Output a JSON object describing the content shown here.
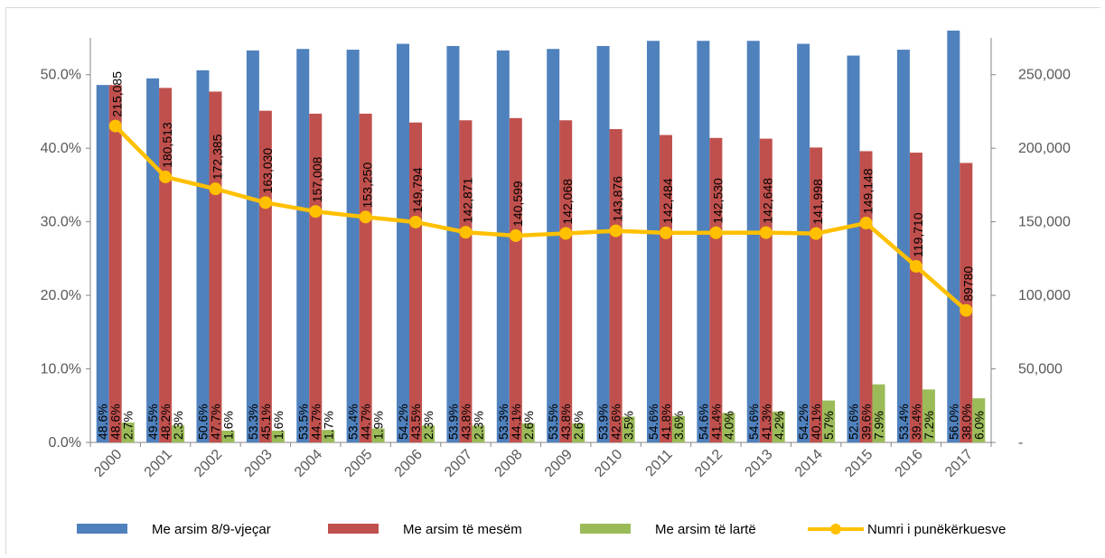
{
  "chart_data": {
    "type": "bar",
    "categories": [
      "2000",
      "2001",
      "2002",
      "2003",
      "2004",
      "2005",
      "2006",
      "2007",
      "2008",
      "2009",
      "2010",
      "2011",
      "2012",
      "2013",
      "2014",
      "2015",
      "2016",
      "2017"
    ],
    "series": [
      {
        "name": "Me arsim 8/9-vjeçar",
        "axis": "left",
        "color": "#4f81bd",
        "values": [
          48.6,
          49.5,
          50.6,
          53.3,
          53.5,
          53.4,
          54.2,
          53.9,
          53.3,
          53.5,
          53.9,
          54.6,
          54.6,
          54.6,
          54.2,
          52.6,
          53.4,
          56.0
        ],
        "labels": [
          "48.6%",
          "49.5%",
          "50.6%",
          "53.3%",
          "53.5%",
          "53.4%",
          "54.2%",
          "53.9%",
          "53.3%",
          "53.5%",
          "53.9%",
          "54.6%",
          "54.6%",
          "54.6%",
          "54.2%",
          "52.6%",
          "53.4%",
          "56.0%"
        ]
      },
      {
        "name": "Me arsim të mesëm",
        "axis": "left",
        "color": "#c0504d",
        "values": [
          48.6,
          48.2,
          47.7,
          45.1,
          44.7,
          44.7,
          43.5,
          43.8,
          44.1,
          43.8,
          42.6,
          41.8,
          41.4,
          41.3,
          40.1,
          39.6,
          39.4,
          38.0
        ],
        "labels": [
          "48.6%",
          "48.2%",
          "47.7%",
          "45.1%",
          "44.7%",
          "44.7%",
          "43.5%",
          "43.8%",
          "44.1%",
          "43.8%",
          "42.6%",
          "41.8%",
          "41.4%",
          "41.3%",
          "40.1%",
          "39.6%",
          "39.4%",
          "38.0%"
        ]
      },
      {
        "name": "Me arsim të lartë",
        "axis": "left",
        "color": "#9bbb59",
        "values": [
          2.7,
          2.3,
          1.6,
          1.6,
          1.7,
          1.9,
          2.3,
          2.3,
          2.6,
          2.6,
          3.5,
          3.6,
          4.0,
          4.2,
          5.7,
          7.9,
          7.2,
          6.0
        ],
        "labels": [
          "2.7%",
          "2.3%",
          "1.6%",
          "1.6%",
          "1.7%",
          "1.9%",
          "2.3%",
          "2.3%",
          "2.6%",
          "2.6%",
          "3.5%",
          "3.6%",
          "4.0%",
          "4.2%",
          "5.7%",
          "7.9%",
          "7.2%",
          "6.0%"
        ]
      },
      {
        "name": "Numri i punëkërkuesve",
        "axis": "right",
        "type": "line",
        "color": "#ffc000",
        "values": [
          215085,
          180513,
          172385,
          163030,
          157008,
          153250,
          149794,
          142871,
          140599,
          142068,
          143876,
          142484,
          142530,
          142648,
          141998,
          149148,
          119710,
          89780
        ],
        "labels": [
          "215,085",
          "180,513",
          "172,385",
          "163,030",
          "157,008",
          "153,250",
          "149,794",
          "142,871",
          "140,599",
          "142,068",
          "143,876",
          "142,484",
          "142,530",
          "142,648",
          "141,998",
          "149,148",
          "119,710",
          "89780"
        ]
      }
    ],
    "y_left": {
      "ylim": [
        0,
        55
      ],
      "ticks": [
        "0.0%",
        "10.0%",
        "20.0%",
        "30.0%",
        "40.0%",
        "50.0%"
      ],
      "tick_values": [
        0,
        10,
        20,
        30,
        40,
        50
      ]
    },
    "y_right": {
      "ylim": [
        0,
        275000
      ],
      "ticks": [
        "-",
        "50,000",
        "100,000",
        "150,000",
        "200,000",
        "250,000"
      ],
      "tick_values": [
        0,
        50000,
        100000,
        150000,
        200000,
        250000
      ]
    },
    "grid": false,
    "legend_position": "bottom",
    "title": "",
    "xlabel": "",
    "ylabel": ""
  }
}
